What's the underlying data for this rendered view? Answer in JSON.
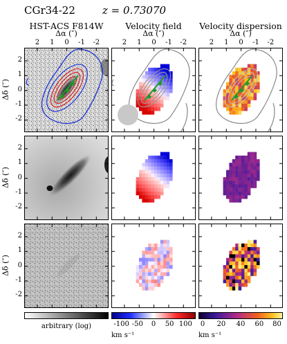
{
  "header": {
    "object_name": "CGr34-22",
    "redshift": "z = 0.73070"
  },
  "columns": [
    {
      "title": "HST-ACS F814W"
    },
    {
      "title": "Velocity field"
    },
    {
      "title": "Velocity dispersion"
    }
  ],
  "x_axis_label": "Δα (″)",
  "y_axis_label": "Δδ (″)",
  "x_ticks": [
    "2",
    "1",
    "0",
    "-1",
    "-2"
  ],
  "y_ticks": [
    "2",
    "1",
    "0",
    "-1",
    "-2"
  ],
  "colorbars": [
    {
      "label": "arbitrary (log)",
      "ticks": [],
      "unit": ""
    },
    {
      "label": "",
      "ticks": [
        "-100",
        "-50",
        "0",
        "50",
        "100"
      ],
      "unit": "km s⁻¹"
    },
    {
      "label": "",
      "ticks": [
        "0",
        "20",
        "40",
        "60",
        "80"
      ],
      "unit": "km s⁻¹"
    }
  ],
  "colors": {
    "contour_blue": "#1a2fd6",
    "contour_red": "#d42020",
    "major_axis_green": "#1f9a2a",
    "psf_disc": "#c8c8c8"
  }
}
